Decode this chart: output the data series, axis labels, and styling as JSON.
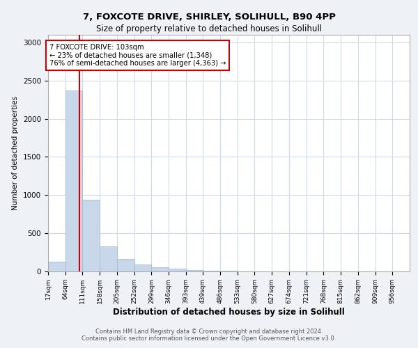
{
  "title1": "7, FOXCOTE DRIVE, SHIRLEY, SOLIHULL, B90 4PP",
  "title2": "Size of property relative to detached houses in Solihull",
  "xlabel": "Distribution of detached houses by size in Solihull",
  "ylabel": "Number of detached properties",
  "footer1": "Contains HM Land Registry data © Crown copyright and database right 2024.",
  "footer2": "Contains public sector information licensed under the Open Government Licence v3.0.",
  "bar_color": "#c8d8ea",
  "bar_edge_color": "#9ab8cc",
  "annotation_box_color": "#cc0000",
  "vline_color": "#cc0000",
  "property_size": 103,
  "annotation_line1": "7 FOXCOTE DRIVE: 103sqm",
  "annotation_line2": "← 23% of detached houses are smaller (1,348)",
  "annotation_line3": "76% of semi-detached houses are larger (4,363) →",
  "bin_labels": [
    "17sqm",
    "64sqm",
    "111sqm",
    "158sqm",
    "205sqm",
    "252sqm",
    "299sqm",
    "346sqm",
    "393sqm",
    "439sqm",
    "486sqm",
    "533sqm",
    "580sqm",
    "627sqm",
    "674sqm",
    "721sqm",
    "768sqm",
    "815sqm",
    "862sqm",
    "909sqm",
    "956sqm"
  ],
  "bin_edges": [
    17,
    64,
    111,
    158,
    205,
    252,
    299,
    346,
    393,
    439,
    486,
    533,
    580,
    627,
    674,
    721,
    768,
    815,
    862,
    909,
    956
  ],
  "bar_heights": [
    130,
    2370,
    940,
    330,
    160,
    90,
    55,
    35,
    20,
    10,
    5,
    0,
    0,
    0,
    0,
    0,
    0,
    0,
    0,
    0
  ],
  "ylim": [
    0,
    3100
  ],
  "yticks": [
    0,
    500,
    1000,
    1500,
    2000,
    2500,
    3000
  ],
  "background_color": "#eef2f7",
  "plot_bg_color": "#ffffff",
  "grid_color": "#d0dae6"
}
